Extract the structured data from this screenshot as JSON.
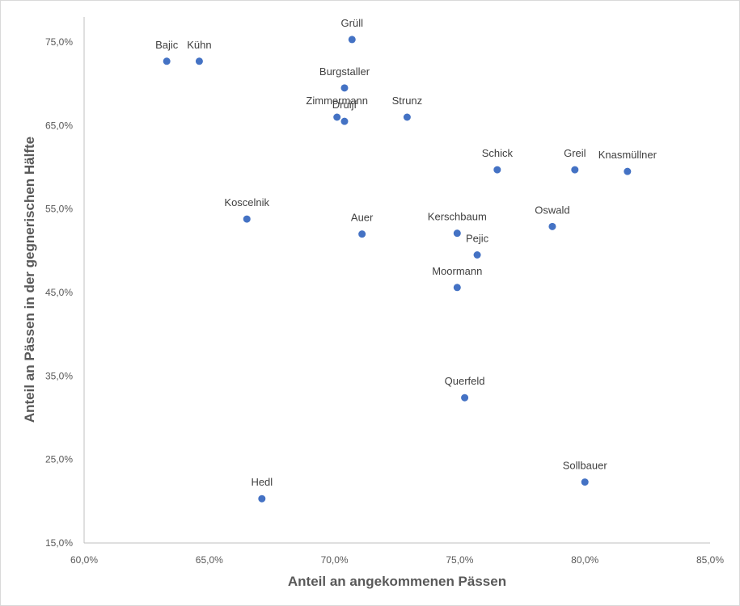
{
  "chart_data": {
    "type": "scatter",
    "title": "",
    "xlabel": "Anteil an angekommenen Pässen",
    "ylabel": "Anteil an Pässen in der gegnerischen Hälfte",
    "xlim": [
      60,
      85
    ],
    "ylim": [
      15,
      78
    ],
    "xticks": [
      60,
      65,
      70,
      75,
      80,
      85
    ],
    "yticks": [
      15,
      25,
      35,
      45,
      55,
      65,
      75
    ],
    "xtick_labels": [
      "60,0%",
      "65,0%",
      "70,0%",
      "75,0%",
      "80,0%",
      "85,0%"
    ],
    "ytick_labels": [
      "15,0%",
      "25,0%",
      "35,0%",
      "45,0%",
      "55,0%",
      "65,0%",
      "75,0%"
    ],
    "grid": false,
    "marker_color": "#4472c4",
    "points": [
      {
        "name": "Grüll",
        "x": 70.7,
        "y": 75.3
      },
      {
        "name": "Bajic",
        "x": 63.3,
        "y": 72.7
      },
      {
        "name": "Kühn",
        "x": 64.6,
        "y": 72.7
      },
      {
        "name": "Burgstaller",
        "x": 70.4,
        "y": 69.5
      },
      {
        "name": "Zimmermann",
        "x": 70.1,
        "y": 66.0
      },
      {
        "name": "Druijf",
        "x": 70.4,
        "y": 65.5
      },
      {
        "name": "Strunz",
        "x": 72.9,
        "y": 66.0
      },
      {
        "name": "Schick",
        "x": 76.5,
        "y": 59.7
      },
      {
        "name": "Greil",
        "x": 79.6,
        "y": 59.7
      },
      {
        "name": "Knasmüllner",
        "x": 81.7,
        "y": 59.5
      },
      {
        "name": "Koscelnik",
        "x": 66.5,
        "y": 53.8
      },
      {
        "name": "Auer",
        "x": 71.1,
        "y": 52.0
      },
      {
        "name": "Kerschbaum",
        "x": 74.9,
        "y": 52.1
      },
      {
        "name": "Oswald",
        "x": 78.7,
        "y": 52.9
      },
      {
        "name": "Pejic",
        "x": 75.7,
        "y": 49.5
      },
      {
        "name": "Moormann",
        "x": 74.9,
        "y": 45.6
      },
      {
        "name": "Querfeld",
        "x": 75.2,
        "y": 32.4
      },
      {
        "name": "Sollbauer",
        "x": 80.0,
        "y": 22.3
      },
      {
        "name": "Hedl",
        "x": 67.1,
        "y": 20.3
      }
    ]
  }
}
